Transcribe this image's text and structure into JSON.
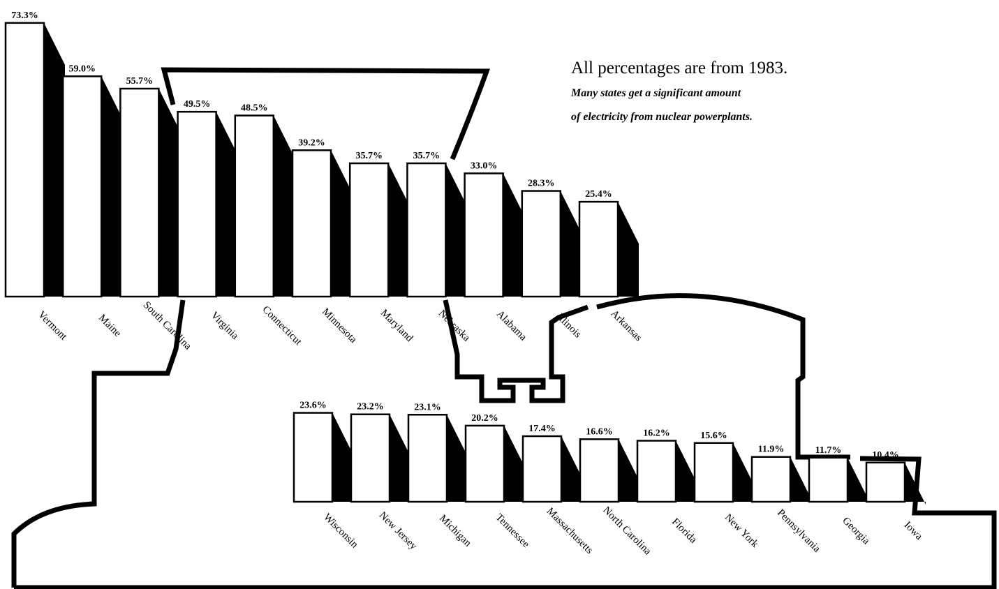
{
  "chart_data": [
    {
      "type": "bar",
      "title": "All percentages are from 1983.",
      "subtitle": [
        "Many states get a significant amount",
        "of electricity from nuclear powerplants."
      ],
      "categories": [
        "Vermont",
        "Maine",
        "South Carolina",
        "Virginia",
        "Connecticut",
        "Minnesota",
        "Maryland",
        "Nebraska",
        "Alabama",
        "Illinois",
        "Arkansas"
      ],
      "values": [
        73.3,
        59.0,
        55.7,
        49.5,
        48.5,
        39.2,
        35.7,
        35.7,
        33.0,
        28.3,
        25.4
      ],
      "value_labels": [
        "73.3%",
        "59.0%",
        "55.7%",
        "49.5%",
        "48.5%",
        "39.2%",
        "35.7%",
        "35.7%",
        "33.0%",
        "28.3%",
        "25.4%"
      ],
      "color": "#ffffff"
    },
    {
      "type": "bar",
      "categories": [
        "Wisconsin",
        "New Jersey",
        "Michigan",
        "Tennessee",
        "Massachusetts",
        "North Carolina",
        "Florida",
        "New York",
        "Pennsylvania",
        "Georgia",
        "Iowa"
      ],
      "values": [
        23.6,
        23.2,
        23.1,
        20.2,
        17.4,
        16.6,
        16.2,
        15.6,
        11.9,
        11.7,
        10.4
      ],
      "value_labels": [
        "23.6%",
        "23.2%",
        "23.1%",
        "20.2%",
        "17.4%",
        "16.6%",
        "16.2%",
        "15.6%",
        "11.9%",
        "11.7%",
        "10.4%"
      ],
      "color": "#ffffff"
    }
  ]
}
